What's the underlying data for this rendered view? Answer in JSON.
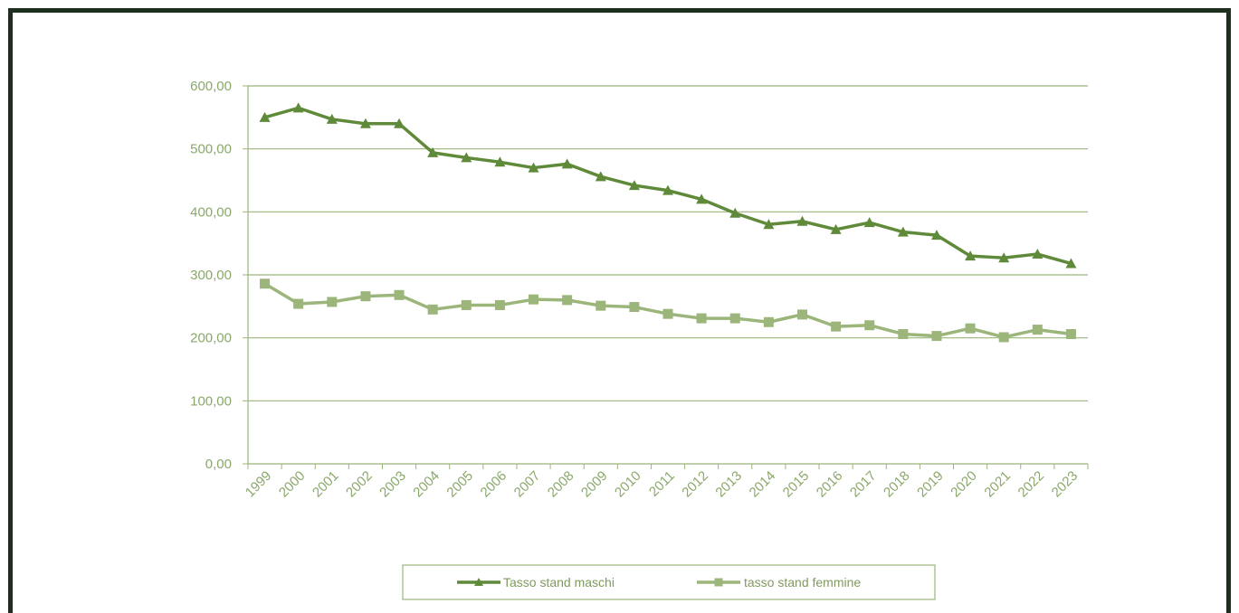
{
  "chart_data": {
    "type": "line",
    "title": "",
    "xlabel": "",
    "ylabel": "",
    "categories": [
      "1999",
      "2000",
      "2001",
      "2002",
      "2003",
      "2004",
      "2005",
      "2006",
      "2007",
      "2008",
      "2009",
      "2010",
      "2011",
      "2012",
      "2013",
      "2014",
      "2015",
      "2016",
      "2017",
      "2018",
      "2019",
      "2020",
      "2021",
      "2022",
      "2023"
    ],
    "ylim": [
      0,
      600
    ],
    "yticks": [
      "0,00",
      "100,00",
      "200,00",
      "300,00",
      "400,00",
      "500,00",
      "600,00"
    ],
    "ytick_values": [
      0,
      100,
      200,
      300,
      400,
      500,
      600
    ],
    "grid": true,
    "legend_position": "bottom",
    "series": [
      {
        "name": "Tasso stand maschi",
        "marker": "triangle",
        "color": "#5f8a3a",
        "values": [
          550,
          565,
          547,
          540,
          540,
          494,
          486,
          479,
          470,
          476,
          456,
          442,
          434,
          420,
          398,
          380,
          385,
          372,
          383,
          368,
          363,
          330,
          327,
          333,
          318
        ]
      },
      {
        "name": "tasso stand femmine",
        "marker": "square",
        "color": "#9bb57a",
        "values": [
          286,
          254,
          257,
          266,
          268,
          245,
          252,
          252,
          261,
          260,
          251,
          249,
          238,
          231,
          231,
          225,
          237,
          218,
          220,
          206,
          203,
          215,
          201,
          213,
          206
        ]
      }
    ]
  }
}
